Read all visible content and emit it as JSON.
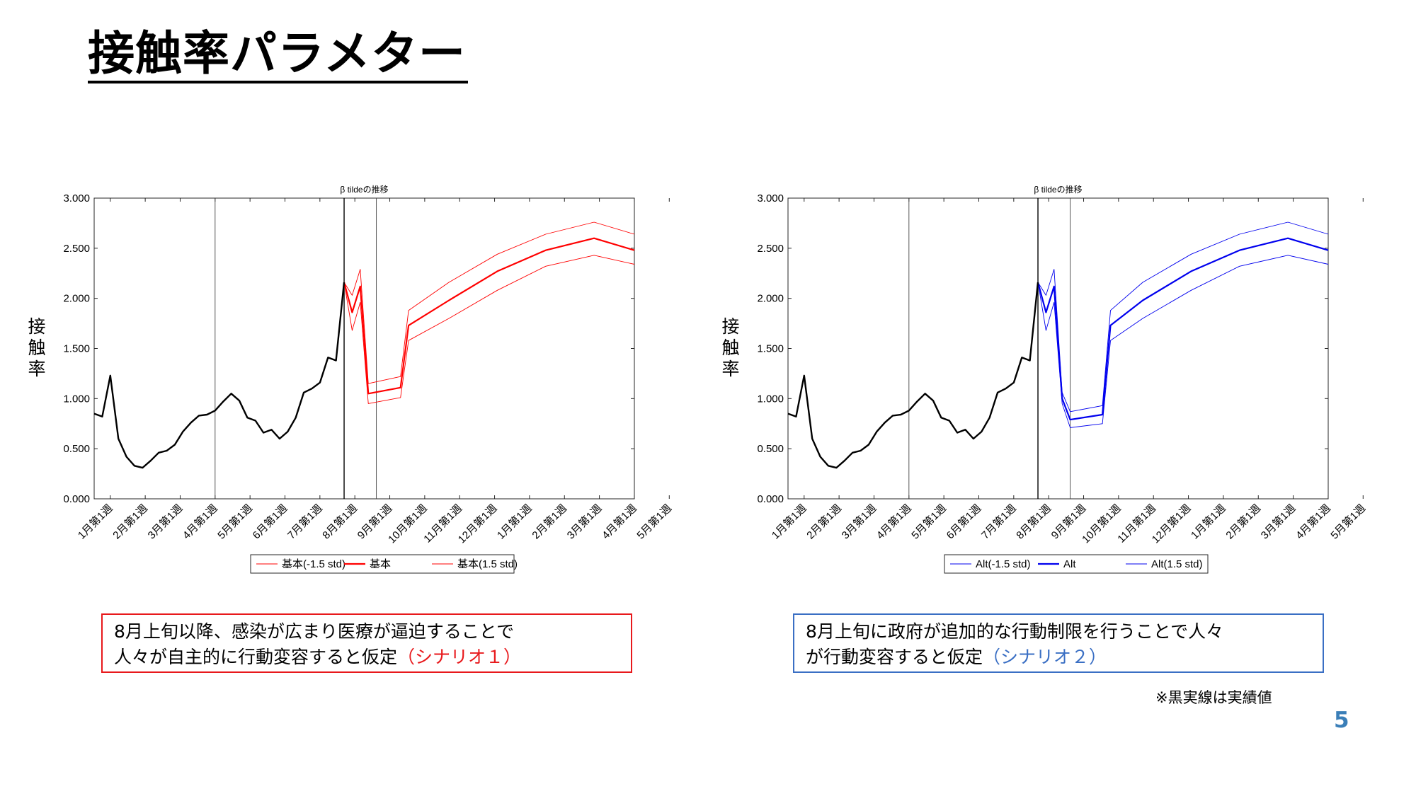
{
  "slide": {
    "title": "接触率パラメター",
    "footnote": "※黒実線は実績値",
    "page_number": "5"
  },
  "captions": [
    {
      "line1": "8月上旬以降、感染が広まり医療が逼迫することで",
      "line2_prefix": "人々が自主的に行動変容すると仮定",
      "line2_highlight": "（シナリオ１）",
      "border_color": "#e8191c",
      "highlight_color": "#e8191c"
    },
    {
      "line1": "8月上旬に政府が追加的な行動制限を行うことで人々",
      "line2_prefix": "が行動変容すると仮定",
      "line2_highlight": "（シナリオ２）",
      "border_color": "#3a6fc4",
      "highlight_color": "#3a6fc4"
    }
  ],
  "colors": {
    "actual": "#000000",
    "scenario1": "#ff0000",
    "scenario2": "#0000ee"
  },
  "chart_data": [
    {
      "type": "line",
      "title": "β tildeの推移",
      "ylabel": "接触率",
      "ylim": [
        0,
        3
      ],
      "yticks": [
        "0.000",
        "0.500",
        "1.000",
        "1.500",
        "2.000",
        "2.500",
        "3.000"
      ],
      "x_tick_labels": [
        "1月第1週",
        "2月第1週",
        "3月第1週",
        "4月第1週",
        "5月第1週",
        "6月第1週",
        "7月第1週",
        "8月第1週",
        "9月第1週",
        "10月第1週",
        "11月第1週",
        "12月第1週",
        "1月第1週",
        "2月第1週",
        "3月第1週",
        "4月第1週",
        "5月第1週"
      ],
      "vertical_lines_week": [
        15,
        31,
        35
      ],
      "legend": {
        "placement": "bottom",
        "entries": [
          "基本(-1.5 std)",
          "基本",
          "基本(1.5 std)"
        ]
      },
      "actual": {
        "name": "",
        "points": [
          [
            0,
            0.85
          ],
          [
            1,
            0.82
          ],
          [
            2,
            1.23
          ],
          [
            3,
            0.6
          ],
          [
            4,
            0.42
          ],
          [
            5,
            0.33
          ],
          [
            6,
            0.31
          ],
          [
            7,
            0.38
          ],
          [
            8,
            0.46
          ],
          [
            9,
            0.48
          ],
          [
            10,
            0.54
          ],
          [
            11,
            0.67
          ],
          [
            12,
            0.76
          ],
          [
            13,
            0.83
          ],
          [
            14,
            0.84
          ],
          [
            15,
            0.88
          ],
          [
            16,
            0.97
          ],
          [
            17,
            1.05
          ],
          [
            18,
            0.98
          ],
          [
            19,
            0.81
          ],
          [
            20,
            0.78
          ],
          [
            21,
            0.66
          ],
          [
            22,
            0.69
          ],
          [
            23,
            0.6
          ],
          [
            24,
            0.67
          ],
          [
            25,
            0.81
          ],
          [
            26,
            1.06
          ],
          [
            27,
            1.1
          ],
          [
            28,
            1.16
          ],
          [
            29,
            1.41
          ],
          [
            30,
            1.38
          ],
          [
            31,
            2.16
          ]
        ]
      },
      "series": [
        {
          "name": "基本(-1.5 std)",
          "points": [
            [
              31,
              2.16
            ],
            [
              32,
              1.68
            ],
            [
              33,
              1.96
            ],
            [
              34,
              0.95
            ],
            [
              38,
              1.01
            ],
            [
              39,
              1.58
            ],
            [
              44,
              1.8
            ],
            [
              50,
              2.08
            ],
            [
              56,
              2.32
            ],
            [
              62,
              2.43
            ],
            [
              67,
              2.34
            ]
          ]
        },
        {
          "name": "基本",
          "points": [
            [
              31,
              2.16
            ],
            [
              32,
              1.86
            ],
            [
              33,
              2.12
            ],
            [
              34,
              1.05
            ],
            [
              38,
              1.11
            ],
            [
              39,
              1.73
            ],
            [
              44,
              1.98
            ],
            [
              50,
              2.27
            ],
            [
              56,
              2.48
            ],
            [
              62,
              2.6
            ],
            [
              67,
              2.48
            ]
          ]
        },
        {
          "name": "基本(1.5 std)",
          "points": [
            [
              31,
              2.16
            ],
            [
              32,
              2.03
            ],
            [
              33,
              2.29
            ],
            [
              34,
              1.15
            ],
            [
              38,
              1.22
            ],
            [
              39,
              1.88
            ],
            [
              44,
              2.16
            ],
            [
              50,
              2.44
            ],
            [
              56,
              2.64
            ],
            [
              62,
              2.76
            ],
            [
              67,
              2.64
            ]
          ]
        }
      ]
    },
    {
      "type": "line",
      "title": "β tildeの推移",
      "ylabel": "接触率",
      "ylim": [
        0,
        3
      ],
      "yticks": [
        "0.000",
        "0.500",
        "1.000",
        "1.500",
        "2.000",
        "2.500",
        "3.000"
      ],
      "x_tick_labels": [
        "1月第1週",
        "2月第1週",
        "3月第1週",
        "4月第1週",
        "5月第1週",
        "6月第1週",
        "7月第1週",
        "8月第1週",
        "9月第1週",
        "10月第1週",
        "11月第1週",
        "12月第1週",
        "1月第1週",
        "2月第1週",
        "3月第1週",
        "4月第1週",
        "5月第1週"
      ],
      "vertical_lines_week": [
        15,
        31,
        35
      ],
      "legend": {
        "placement": "bottom",
        "entries": [
          "Alt(-1.5 std)",
          "Alt",
          "Alt(1.5 std)"
        ]
      },
      "actual": {
        "name": "",
        "points": [
          [
            0,
            0.85
          ],
          [
            1,
            0.82
          ],
          [
            2,
            1.23
          ],
          [
            3,
            0.6
          ],
          [
            4,
            0.42
          ],
          [
            5,
            0.33
          ],
          [
            6,
            0.31
          ],
          [
            7,
            0.38
          ],
          [
            8,
            0.46
          ],
          [
            9,
            0.48
          ],
          [
            10,
            0.54
          ],
          [
            11,
            0.67
          ],
          [
            12,
            0.76
          ],
          [
            13,
            0.83
          ],
          [
            14,
            0.84
          ],
          [
            15,
            0.88
          ],
          [
            16,
            0.97
          ],
          [
            17,
            1.05
          ],
          [
            18,
            0.98
          ],
          [
            19,
            0.81
          ],
          [
            20,
            0.78
          ],
          [
            21,
            0.66
          ],
          [
            22,
            0.69
          ],
          [
            23,
            0.6
          ],
          [
            24,
            0.67
          ],
          [
            25,
            0.81
          ],
          [
            26,
            1.06
          ],
          [
            27,
            1.1
          ],
          [
            28,
            1.16
          ],
          [
            29,
            1.41
          ],
          [
            30,
            1.38
          ],
          [
            31,
            2.16
          ]
        ]
      },
      "series": [
        {
          "name": "Alt(-1.5 std)",
          "points": [
            [
              31,
              2.16
            ],
            [
              32,
              1.68
            ],
            [
              33,
              1.96
            ],
            [
              34,
              0.95
            ],
            [
              35,
              0.71
            ],
            [
              39,
              0.75
            ],
            [
              40,
              1.58
            ],
            [
              44,
              1.8
            ],
            [
              50,
              2.08
            ],
            [
              56,
              2.32
            ],
            [
              62,
              2.43
            ],
            [
              67,
              2.34
            ]
          ]
        },
        {
          "name": "Alt",
          "points": [
            [
              31,
              2.16
            ],
            [
              32,
              1.86
            ],
            [
              33,
              2.12
            ],
            [
              34,
              1.0
            ],
            [
              35,
              0.79
            ],
            [
              39,
              0.84
            ],
            [
              40,
              1.73
            ],
            [
              44,
              1.98
            ],
            [
              50,
              2.27
            ],
            [
              56,
              2.48
            ],
            [
              62,
              2.6
            ],
            [
              67,
              2.48
            ]
          ]
        },
        {
          "name": "Alt(1.5 std)",
          "points": [
            [
              31,
              2.16
            ],
            [
              32,
              2.03
            ],
            [
              33,
              2.29
            ],
            [
              34,
              1.06
            ],
            [
              35,
              0.87
            ],
            [
              39,
              0.93
            ],
            [
              40,
              1.88
            ],
            [
              44,
              2.16
            ],
            [
              50,
              2.44
            ],
            [
              56,
              2.64
            ],
            [
              62,
              2.76
            ],
            [
              67,
              2.64
            ]
          ]
        }
      ]
    }
  ]
}
